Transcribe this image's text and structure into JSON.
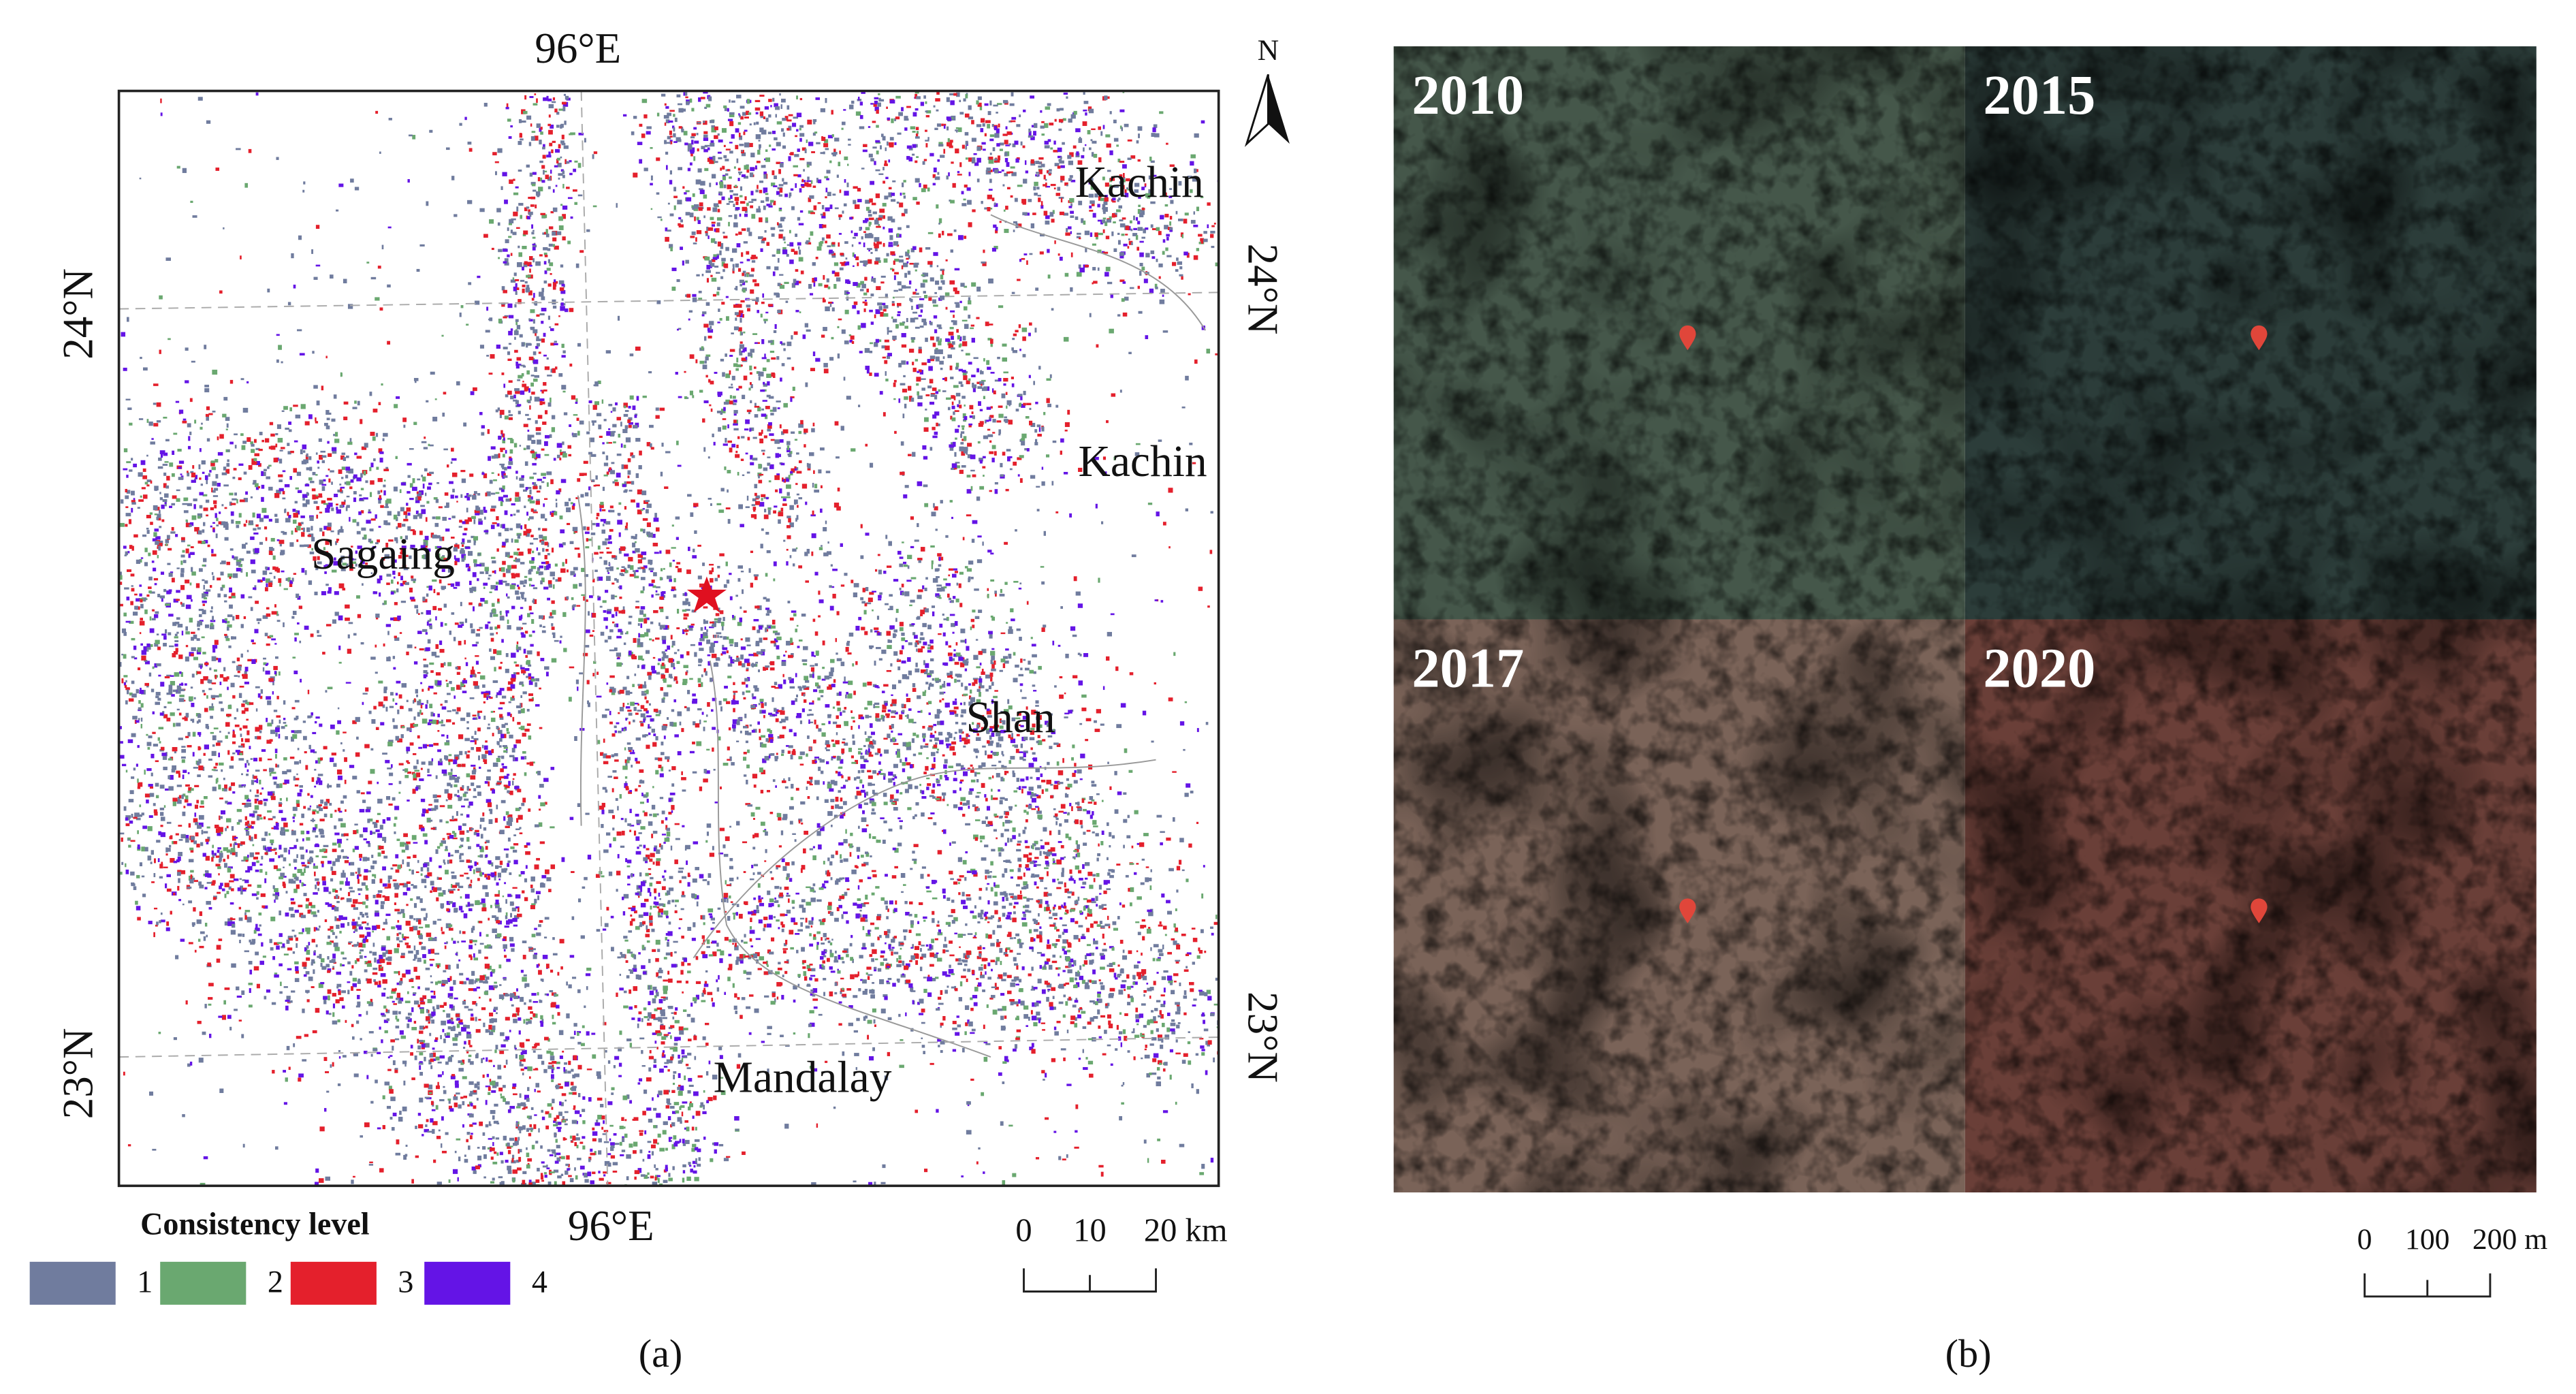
{
  "panel_a": {
    "top_lon_label": "96°E",
    "bottom_lon_label": "96°E",
    "left_lat_labels": [
      "24°N",
      "23°N"
    ],
    "right_lat_labels": [
      "24°N",
      "23°N"
    ],
    "north": "N",
    "places": [
      "Kachin",
      "Kachin",
      "Sagaing",
      "Shan",
      "Mandalay"
    ],
    "legend": {
      "title": "Consistency level",
      "items": [
        {
          "label": "1",
          "color": "#707c9e"
        },
        {
          "label": "2",
          "color": "#6aa870"
        },
        {
          "label": "3",
          "color": "#e4202c"
        },
        {
          "label": "4",
          "color": "#6414e6"
        }
      ]
    },
    "scale": [
      "0",
      "10",
      "20 km"
    ],
    "caption": "(a)"
  },
  "panel_b": {
    "years": [
      "2010",
      "2015",
      "2017",
      "2020"
    ],
    "scale": [
      "0",
      "100",
      "200 m"
    ],
    "caption": "(b)"
  }
}
